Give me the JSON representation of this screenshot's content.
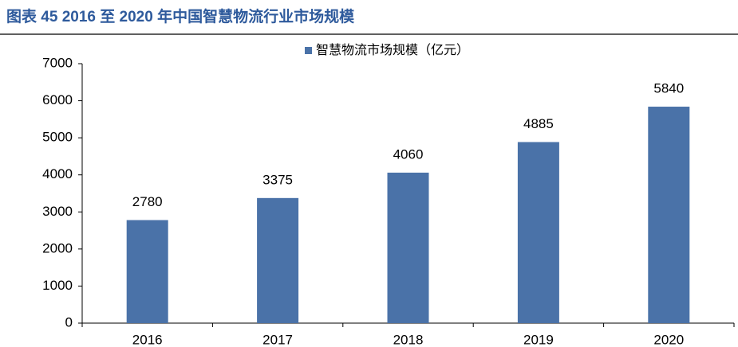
{
  "chart_data": {
    "type": "bar",
    "title": "图表 45 2016 至 2020 年中国智慧物流行业市场规模",
    "categories": [
      "2016",
      "2017",
      "2018",
      "2019",
      "2020"
    ],
    "series": [
      {
        "name": "智慧物流市场规模（亿元）",
        "color": "#4a72a8",
        "values": [
          2780,
          3375,
          4060,
          4885,
          5840
        ]
      }
    ],
    "ylim": [
      0,
      7000
    ],
    "yticks": [
      0,
      1000,
      2000,
      3000,
      4000,
      5000,
      6000,
      7000
    ],
    "legend": "top",
    "grid": false
  }
}
